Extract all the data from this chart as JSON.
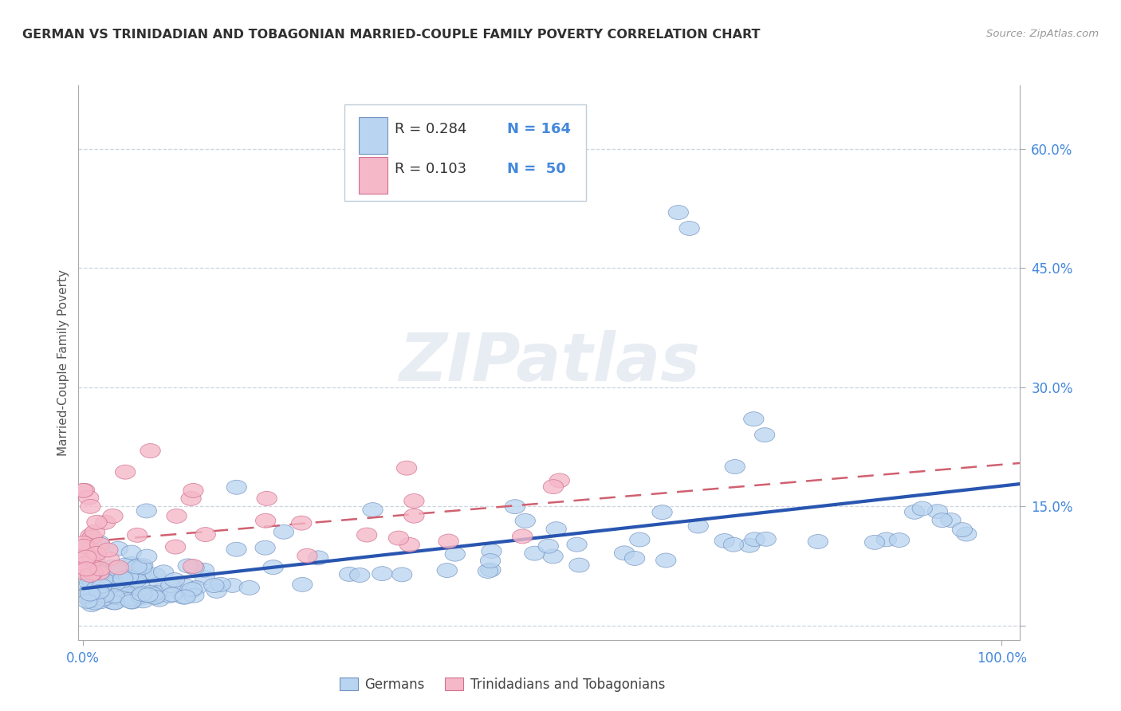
{
  "title": "GERMAN VS TRINIDADIAN AND TOBAGONIAN MARRIED-COUPLE FAMILY POVERTY CORRELATION CHART",
  "source": "Source: ZipAtlas.com",
  "ylabel": "Married-Couple Family Poverty",
  "watermark": "ZIPatlas",
  "legend_r1": "R = 0.284",
  "legend_n1": "N = 164",
  "legend_r2": "R = 0.103",
  "legend_n2": "N =  50",
  "color_blue": "#b8d4f0",
  "color_pink": "#f5b8c8",
  "color_blue_edge": "#7090c0",
  "color_pink_edge": "#d07090",
  "color_blue_line": "#2855b0",
  "color_pink_line": "#d06070",
  "color_blue_text": "#4488dd",
  "color_title": "#303030",
  "grid_color": "#c0ccd8",
  "background_color": "#ffffff",
  "yticks": [
    0.0,
    0.15,
    0.3,
    0.45,
    0.6
  ],
  "ytick_labels": [
    "",
    "15.0%",
    "30.0%",
    "45.0%",
    "60.0%"
  ]
}
